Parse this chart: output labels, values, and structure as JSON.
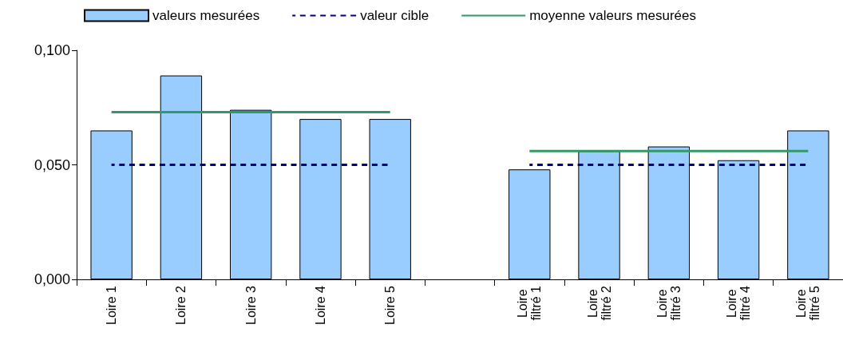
{
  "chart_data": {
    "type": "bar",
    "categories": [
      "Loire 1",
      "Loire 2",
      "Loire 3",
      "Loire 4",
      "Loire 5",
      null,
      "Loire filtré 1",
      "Loire filtré 2",
      "Loire filtré 3",
      "Loire filtré 4",
      "Loire filtré 5"
    ],
    "series": [
      {
        "name": "valeurs mesurées",
        "color": "#99ccff",
        "values": [
          0.065,
          0.089,
          0.074,
          0.07,
          0.07,
          null,
          0.048,
          0.056,
          0.058,
          0.052,
          0.065
        ]
      },
      {
        "name": "valeur cible",
        "type": "line",
        "line_style": "dashed",
        "color": "#000080",
        "values": [
          0.05,
          0.05,
          0.05,
          0.05,
          0.05,
          null,
          0.05,
          0.05,
          0.05,
          0.05,
          0.05
        ]
      },
      {
        "name": "moyenne valeurs mesurées",
        "type": "line",
        "line_style": "solid",
        "color": "#339966",
        "values": [
          0.073,
          0.073,
          0.073,
          0.073,
          0.073,
          null,
          0.056,
          0.056,
          0.056,
          0.056,
          0.056
        ]
      }
    ],
    "ylim": [
      0,
      0.1
    ],
    "yticks": [
      {
        "value": 0,
        "label": "0,000"
      },
      {
        "value": 0.05,
        "label": "0,050"
      },
      {
        "value": 0.1,
        "label": "0,100"
      }
    ],
    "grid": false,
    "legend": "top",
    "marker": "none"
  }
}
